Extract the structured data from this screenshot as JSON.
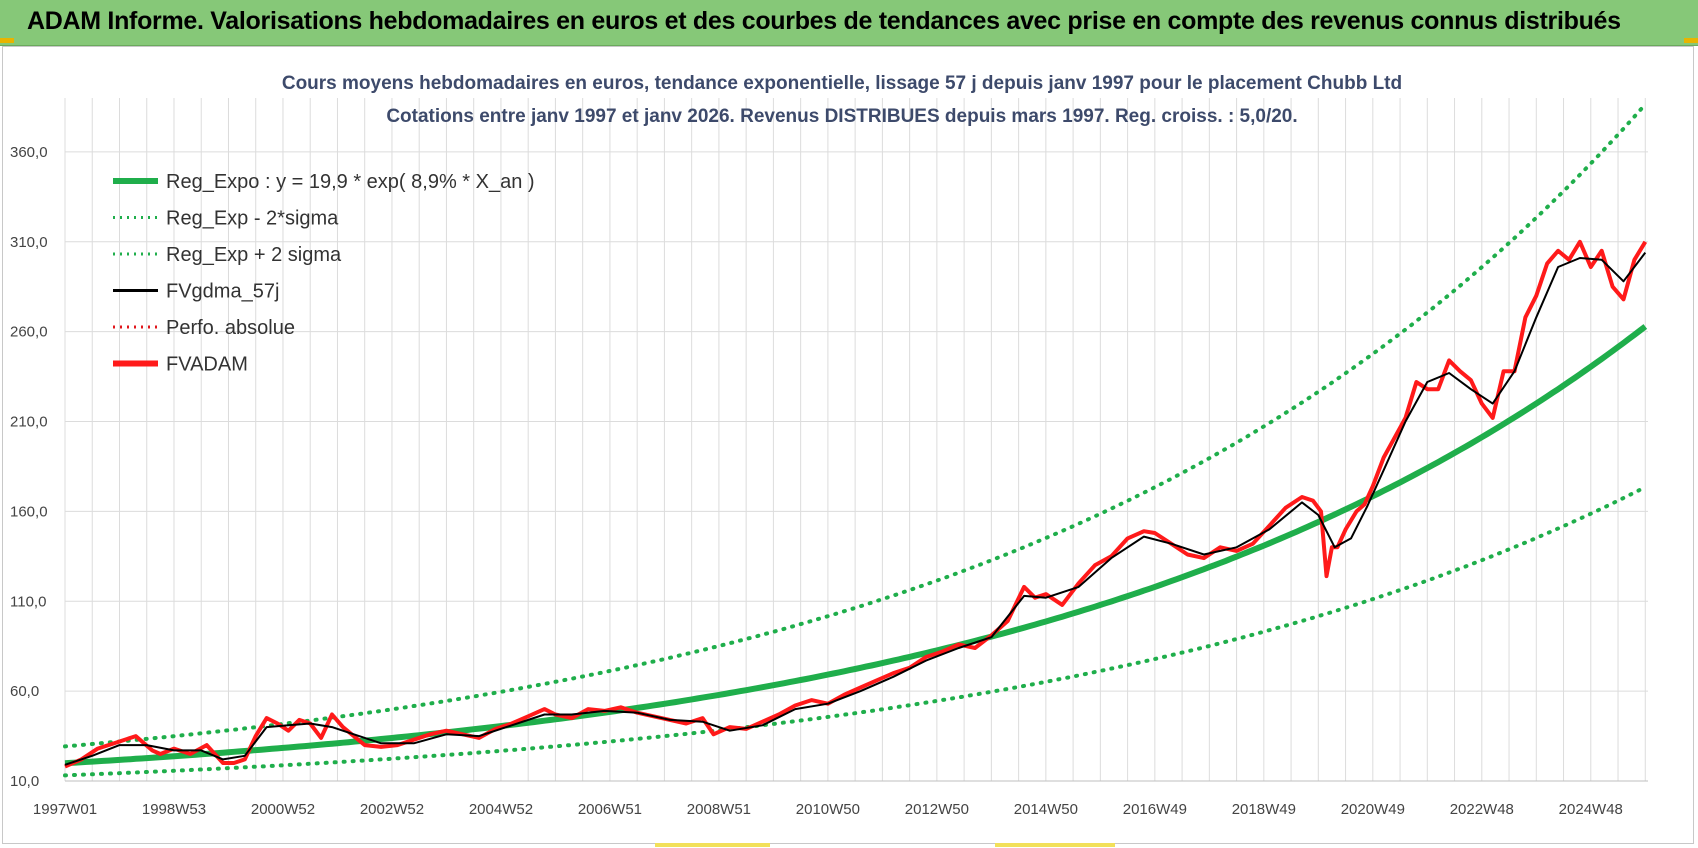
{
  "header": {
    "title": "ADAM Informe. Valorisations hebdomadaires en euros et des courbes de tendances avec prise en compte des revenus connus distribués"
  },
  "colors": {
    "banner": "#86c878",
    "trend": "#1fae4b",
    "trend_band": "#1fae4b",
    "smooth": "#000000",
    "perf": "#e0161b",
    "fvadam": "#ff1a1a",
    "title_text": "#3d4a6b",
    "grid": "#dcdcdc"
  },
  "chart_data": {
    "type": "line",
    "title": "Cours moyens hebdomadaires en euros, tendance exponentielle, lissage 57 j depuis janv 1997 pour le placement Chubb Ltd",
    "subtitle": "Cotations entre janv 1997 et janv 2026. Revenus DISTRIBUES depuis mars 1997. Reg. croiss. : 5,0/20.",
    "xlabel": "",
    "ylabel": "",
    "xlim": [
      1997.0,
      2026.05
    ],
    "ylim": [
      10,
      390
    ],
    "y_ticks": [
      "10,0",
      "60,0",
      "110,0",
      "160,0",
      "210,0",
      "260,0",
      "310,0",
      "360,0"
    ],
    "y_tick_values": [
      10,
      60,
      110,
      160,
      210,
      260,
      310,
      360
    ],
    "x_ticks": [
      "1997W01",
      "1998W53",
      "2000W52",
      "2002W52",
      "2004W52",
      "2006W51",
      "2008W51",
      "2010W50",
      "2012W50",
      "2014W50",
      "2016W49",
      "2018W49",
      "2020W49",
      "2022W48",
      "2024W48"
    ],
    "x_tick_values": [
      1997.0,
      1999.0,
      2001.0,
      2003.0,
      2005.0,
      2007.0,
      2009.0,
      2011.0,
      2013.0,
      2015.0,
      2017.0,
      2019.0,
      2021.0,
      2023.0,
      2025.0
    ],
    "grid": true,
    "legend_position": "top-left",
    "legend": [
      {
        "label": "Reg_Expo : y = 19,9 * exp( 8,9% *  X_an )",
        "style": "solid-thick",
        "color": "#1fae4b"
      },
      {
        "label": "Reg_Exp - 2*sigma",
        "style": "dotted",
        "color": "#1fae4b"
      },
      {
        "label": "Reg_Exp + 2 sigma",
        "style": "dotted",
        "color": "#1fae4b"
      },
      {
        "label": "FVgdma_57j",
        "style": "solid",
        "color": "#000000"
      },
      {
        "label": "Perfo. absolue",
        "style": "dotted",
        "color": "#e0161b"
      },
      {
        "label": "FVADAM",
        "style": "solid-thick",
        "color": "#ff1a1a"
      }
    ],
    "regression": {
      "a": 19.9,
      "rate": 0.089,
      "start_year": 1997.0,
      "lower_factor": 0.66,
      "upper_factor": 1.47
    },
    "fvadam": {
      "x": [
        1997.0,
        1997.3,
        1997.6,
        1998.0,
        1998.3,
        1998.6,
        1998.75,
        1999.0,
        1999.3,
        1999.6,
        1999.9,
        2000.1,
        2000.3,
        2000.5,
        2000.7,
        2000.9,
        2001.1,
        2001.3,
        2001.5,
        2001.7,
        2001.9,
        2002.1,
        2002.3,
        2002.5,
        2002.8,
        2003.1,
        2003.4,
        2003.7,
        2004.0,
        2004.3,
        2004.6,
        2004.9,
        2005.2,
        2005.5,
        2005.8,
        2006.0,
        2006.3,
        2006.6,
        2006.9,
        2007.2,
        2007.5,
        2007.8,
        2008.1,
        2008.4,
        2008.7,
        2008.9,
        2009.2,
        2009.5,
        2009.8,
        2010.1,
        2010.4,
        2010.7,
        2011.0,
        2011.3,
        2011.6,
        2011.9,
        2012.2,
        2012.5,
        2012.8,
        2013.1,
        2013.4,
        2013.7,
        2014.0,
        2014.3,
        2014.6,
        2014.8,
        2015.0,
        2015.3,
        2015.6,
        2015.9,
        2016.2,
        2016.5,
        2016.8,
        2017.0,
        2017.3,
        2017.6,
        2017.9,
        2018.2,
        2018.5,
        2018.8,
        2019.1,
        2019.4,
        2019.7,
        2019.9,
        2020.05,
        2020.15,
        2020.25,
        2020.35,
        2020.5,
        2020.7,
        2020.85,
        2021.0,
        2021.2,
        2021.4,
        2021.6,
        2021.8,
        2022.0,
        2022.2,
        2022.4,
        2022.6,
        2022.8,
        2023.0,
        2023.2,
        2023.4,
        2023.6,
        2023.8,
        2024.0,
        2024.2,
        2024.4,
        2024.6,
        2024.8,
        2025.0,
        2025.2,
        2025.4,
        2025.6,
        2025.8,
        2026.0
      ],
      "y": [
        18,
        22,
        28,
        32,
        35,
        27,
        25,
        28,
        25,
        30,
        20,
        20,
        22,
        35,
        45,
        42,
        38,
        44,
        42,
        34,
        47,
        40,
        35,
        30,
        29,
        30,
        33,
        36,
        38,
        36,
        34,
        39,
        42,
        46,
        50,
        47,
        45,
        50,
        49,
        51,
        48,
        46,
        44,
        42,
        45,
        36,
        40,
        39,
        43,
        47,
        52,
        55,
        53,
        58,
        62,
        66,
        70,
        73,
        79,
        82,
        86,
        84,
        91,
        99,
        118,
        112,
        114,
        108,
        120,
        130,
        135,
        145,
        149,
        148,
        142,
        136,
        134,
        140,
        138,
        142,
        152,
        162,
        168,
        166,
        160,
        124,
        140,
        140,
        150,
        160,
        164,
        174,
        190,
        201,
        212,
        232,
        228,
        228,
        244,
        238,
        233,
        220,
        212,
        238,
        238,
        268,
        280,
        298,
        305,
        300,
        310,
        296,
        305,
        285,
        278,
        300,
        310
      ]
    },
    "fvgdma_57j": {
      "x": [
        1997.0,
        1997.5,
        1998.0,
        1998.5,
        1999.0,
        1999.5,
        1999.9,
        2000.3,
        2000.7,
        2001.1,
        2001.5,
        2001.9,
        2002.3,
        2002.8,
        2003.4,
        2004.0,
        2004.6,
        2005.2,
        2005.8,
        2006.3,
        2006.9,
        2007.5,
        2008.1,
        2008.7,
        2009.2,
        2009.8,
        2010.4,
        2011.0,
        2011.6,
        2012.2,
        2012.8,
        2013.4,
        2014.0,
        2014.6,
        2015.0,
        2015.6,
        2016.2,
        2016.8,
        2017.3,
        2017.9,
        2018.5,
        2019.1,
        2019.7,
        2020.0,
        2020.3,
        2020.6,
        2020.9,
        2021.2,
        2021.6,
        2022.0,
        2022.4,
        2022.8,
        2023.2,
        2023.6,
        2024.0,
        2024.4,
        2024.8,
        2025.2,
        2025.6,
        2026.0
      ],
      "y": [
        19,
        24,
        30,
        30,
        27,
        27,
        22,
        24,
        40,
        41,
        42,
        40,
        36,
        31,
        31,
        36,
        35,
        41,
        47,
        47,
        49,
        48,
        44,
        43,
        38,
        41,
        50,
        53,
        60,
        68,
        77,
        84,
        90,
        113,
        112,
        118,
        134,
        146,
        142,
        136,
        140,
        150,
        165,
        158,
        140,
        145,
        163,
        183,
        210,
        232,
        237,
        228,
        220,
        238,
        268,
        296,
        301,
        300,
        288,
        304
      ]
    }
  }
}
